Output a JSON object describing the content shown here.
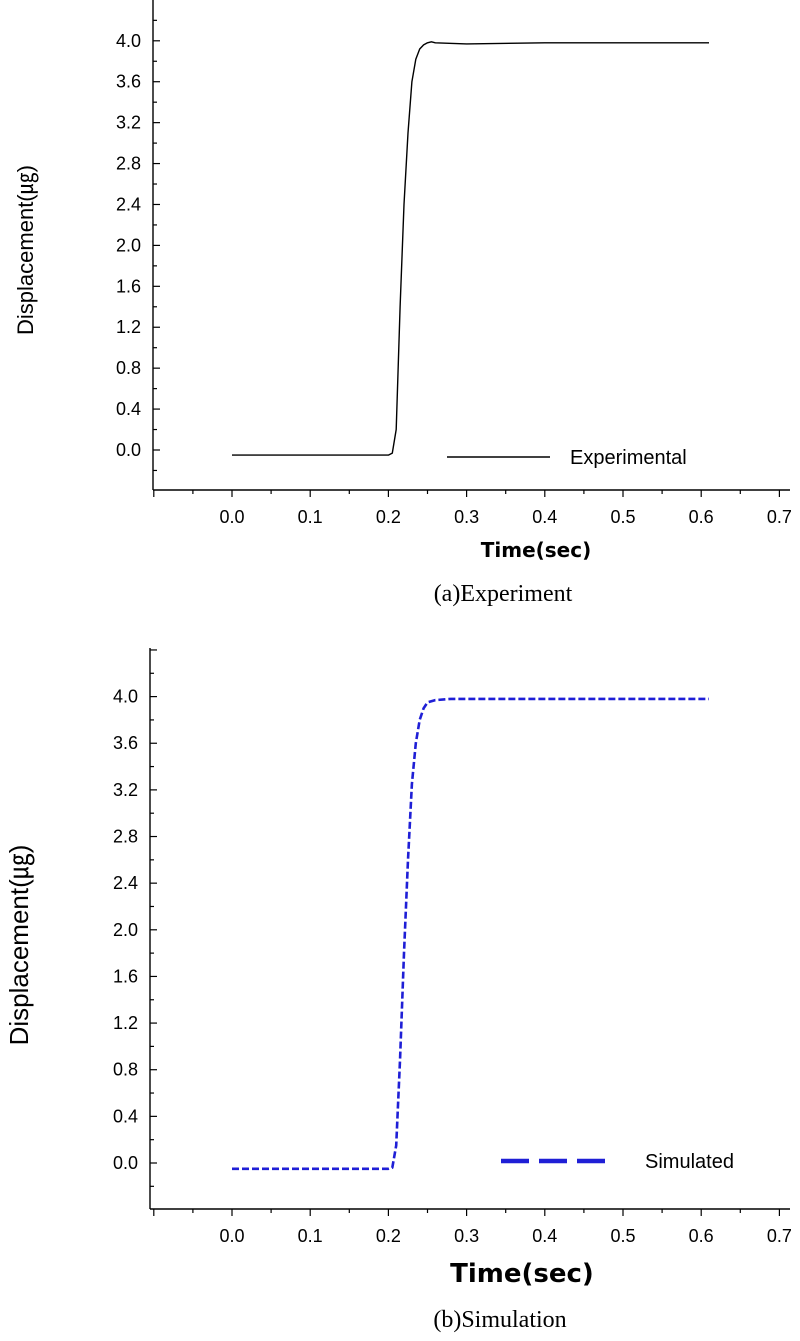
{
  "chart_data": [
    {
      "type": "line",
      "caption": "(a)Experiment",
      "xlabel": "Time(sec)",
      "ylabel": "Displacement(㎍)",
      "xlim": [
        -0.1,
        0.7
      ],
      "ylim": [
        -0.4,
        4.4
      ],
      "xticks": [
        "0.0",
        "0.1",
        "0.2",
        "0.3",
        "0.4",
        "0.5",
        "0.6",
        "0.7"
      ],
      "yticks": [
        "0.0",
        "0.4",
        "0.8",
        "1.2",
        "1.6",
        "2.0",
        "2.4",
        "2.8",
        "3.2",
        "3.6",
        "4.0"
      ],
      "legend_position": "bottom-right",
      "series": [
        {
          "name": "Experimental",
          "color": "#000000",
          "line_style": "solid",
          "x": [
            0.0,
            0.05,
            0.1,
            0.15,
            0.2,
            0.205,
            0.21,
            0.215,
            0.22,
            0.225,
            0.23,
            0.235,
            0.24,
            0.245,
            0.25,
            0.255,
            0.26,
            0.3,
            0.4,
            0.5,
            0.61
          ],
          "y": [
            -0.05,
            -0.05,
            -0.05,
            -0.05,
            -0.05,
            -0.03,
            0.2,
            1.4,
            2.4,
            3.1,
            3.6,
            3.82,
            3.92,
            3.96,
            3.98,
            3.99,
            3.98,
            3.97,
            3.98,
            3.98,
            3.98
          ]
        }
      ]
    },
    {
      "type": "line",
      "caption": "(b)Simulation",
      "xlabel": "Time(sec)",
      "ylabel": "Displacement(㎍)",
      "xlim": [
        -0.1,
        0.7
      ],
      "ylim": [
        -0.4,
        4.4
      ],
      "xticks": [
        "0.0",
        "0.1",
        "0.2",
        "0.3",
        "0.4",
        "0.5",
        "0.6",
        "0.7"
      ],
      "yticks": [
        "0.0",
        "0.4",
        "0.8",
        "1.2",
        "1.6",
        "2.0",
        "2.4",
        "2.8",
        "3.2",
        "3.6",
        "4.0"
      ],
      "legend_position": "bottom-right",
      "series": [
        {
          "name": "Simulated",
          "color": "#1f1fd6",
          "line_style": "dashed",
          "x": [
            0.0,
            0.1,
            0.2,
            0.205,
            0.21,
            0.215,
            0.22,
            0.225,
            0.23,
            0.235,
            0.24,
            0.245,
            0.25,
            0.26,
            0.28,
            0.3,
            0.4,
            0.5,
            0.61
          ],
          "y": [
            -0.05,
            -0.05,
            -0.05,
            -0.04,
            0.15,
            0.9,
            1.8,
            2.6,
            3.25,
            3.6,
            3.8,
            3.9,
            3.95,
            3.97,
            3.98,
            3.98,
            3.98,
            3.98,
            3.98
          ]
        }
      ]
    }
  ]
}
